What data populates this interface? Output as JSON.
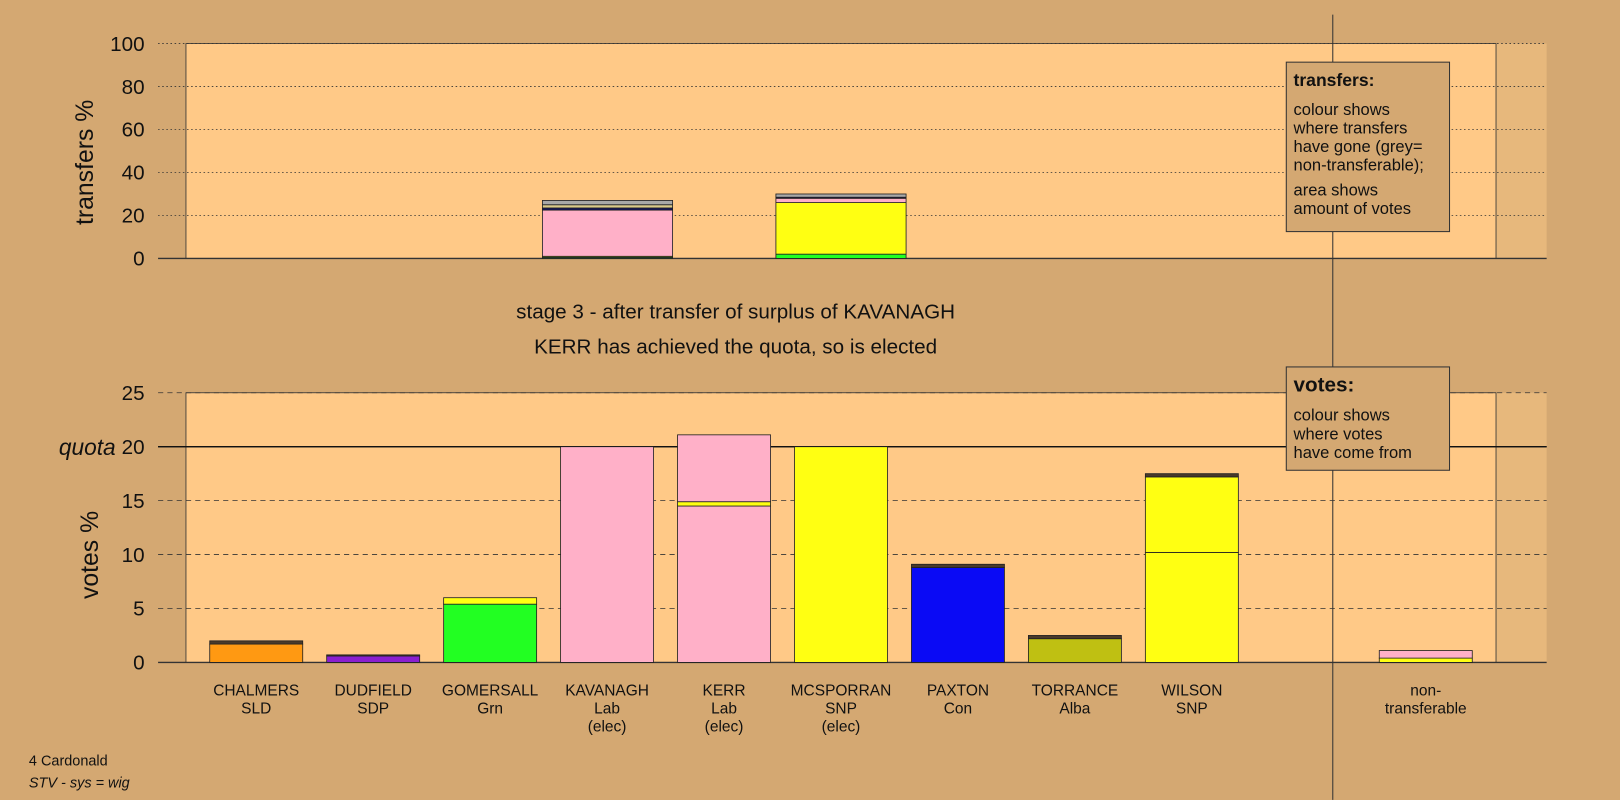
{
  "chart_data": [
    {
      "type": "bar",
      "stacked": true,
      "ylabel": "transfers %",
      "ylim": [
        0,
        100
      ],
      "yticks": [
        0,
        20,
        40,
        60,
        80,
        100
      ],
      "categories": [
        null,
        null
      ],
      "series": [
        {
          "color": "#22ff22",
          "values": [
            0.5,
            2
          ]
        },
        {
          "color": "#ffff12",
          "values": [
            0.5,
            24
          ]
        },
        {
          "color": "#ffb0c8",
          "values": [
            21.5,
            2
          ]
        },
        {
          "color": "#101060",
          "values": [
            1,
            0.5
          ]
        },
        {
          "color": "#d9c98a",
          "values": [
            1.5,
            0
          ]
        },
        {
          "color": "#a8a8a8",
          "values": [
            2,
            1.5
          ]
        }
      ],
      "note": {
        "title": "transfers:",
        "paragraphs": [
          [
            "colour shows",
            "where transfers",
            "have gone (grey=",
            "non-transferable);"
          ],
          [
            "area shows",
            "amount of votes"
          ]
        ]
      }
    },
    {
      "type": "bar",
      "stacked": true,
      "title": "stage 3 - after transfer of surplus of KAVANAGH",
      "subtitle": "KERR has achieved the quota, so is elected",
      "ylabel": "votes %",
      "ylim": [
        0,
        25
      ],
      "yticks": [
        0,
        5,
        10,
        15,
        20,
        25
      ],
      "quota": {
        "value": 20,
        "label": "quota"
      },
      "categories": [
        [
          "CHALMERS",
          "SLD"
        ],
        [
          "DUDFIELD",
          "SDP"
        ],
        [
          "GOMERSALL",
          "Grn"
        ],
        [
          "KAVANAGH",
          "Lab",
          "(elec)"
        ],
        [
          "KERR",
          "Lab",
          "(elec)"
        ],
        [
          "MCSPORRAN",
          "SNP",
          "(elec)"
        ],
        [
          "PAXTON",
          "Con"
        ],
        [
          "TORRANCE",
          "Alba"
        ],
        [
          "WILSON",
          "SNP"
        ],
        [
          "non-",
          "transferable"
        ]
      ],
      "series": [
        {
          "color": "#ff9912",
          "values": [
            1.7,
            0,
            0,
            0,
            0,
            0,
            0,
            0,
            0,
            0
          ]
        },
        {
          "color": "#8a1fd0",
          "values": [
            0,
            0.6,
            0,
            0,
            0,
            0,
            0,
            0,
            0,
            0
          ]
        },
        {
          "color": "#22ff22",
          "values": [
            0,
            0,
            5.4,
            0,
            0,
            0,
            0,
            0,
            0,
            0
          ]
        },
        {
          "color": "#ffb0c8",
          "values": [
            0,
            0,
            0,
            20,
            14.5,
            0,
            0,
            0,
            0,
            0
          ]
        },
        {
          "color": "#ffff12",
          "values": [
            0,
            0,
            0,
            0,
            0,
            20,
            0,
            0,
            10.2,
            0
          ]
        },
        {
          "color": "#0a0af5",
          "values": [
            0,
            0,
            0,
            0,
            0,
            0,
            8.8,
            0,
            0,
            0
          ]
        },
        {
          "color": "#bfc012",
          "values": [
            0,
            0,
            0,
            0,
            0,
            0,
            0,
            2.2,
            0,
            0
          ]
        },
        {
          "color": "#ffff12",
          "values": [
            0,
            0,
            0.6,
            0,
            0.4,
            0,
            0,
            0,
            7.0,
            0.4
          ]
        },
        {
          "color": "#ffb0c8",
          "values": [
            0,
            0,
            0,
            0,
            6.2,
            0,
            0,
            0,
            0,
            0.7
          ]
        },
        {
          "color": "#4a3a2a",
          "values": [
            0.3,
            0.1,
            0,
            0,
            0,
            0,
            0.3,
            0.3,
            0.3,
            0
          ]
        }
      ],
      "note": {
        "title": "votes:",
        "paragraphs": [
          [
            "colour shows",
            "where votes",
            "have come from"
          ]
        ]
      }
    }
  ],
  "footer": {
    "constituency": "4 Cardonald",
    "system": "STV - sys = wig"
  }
}
